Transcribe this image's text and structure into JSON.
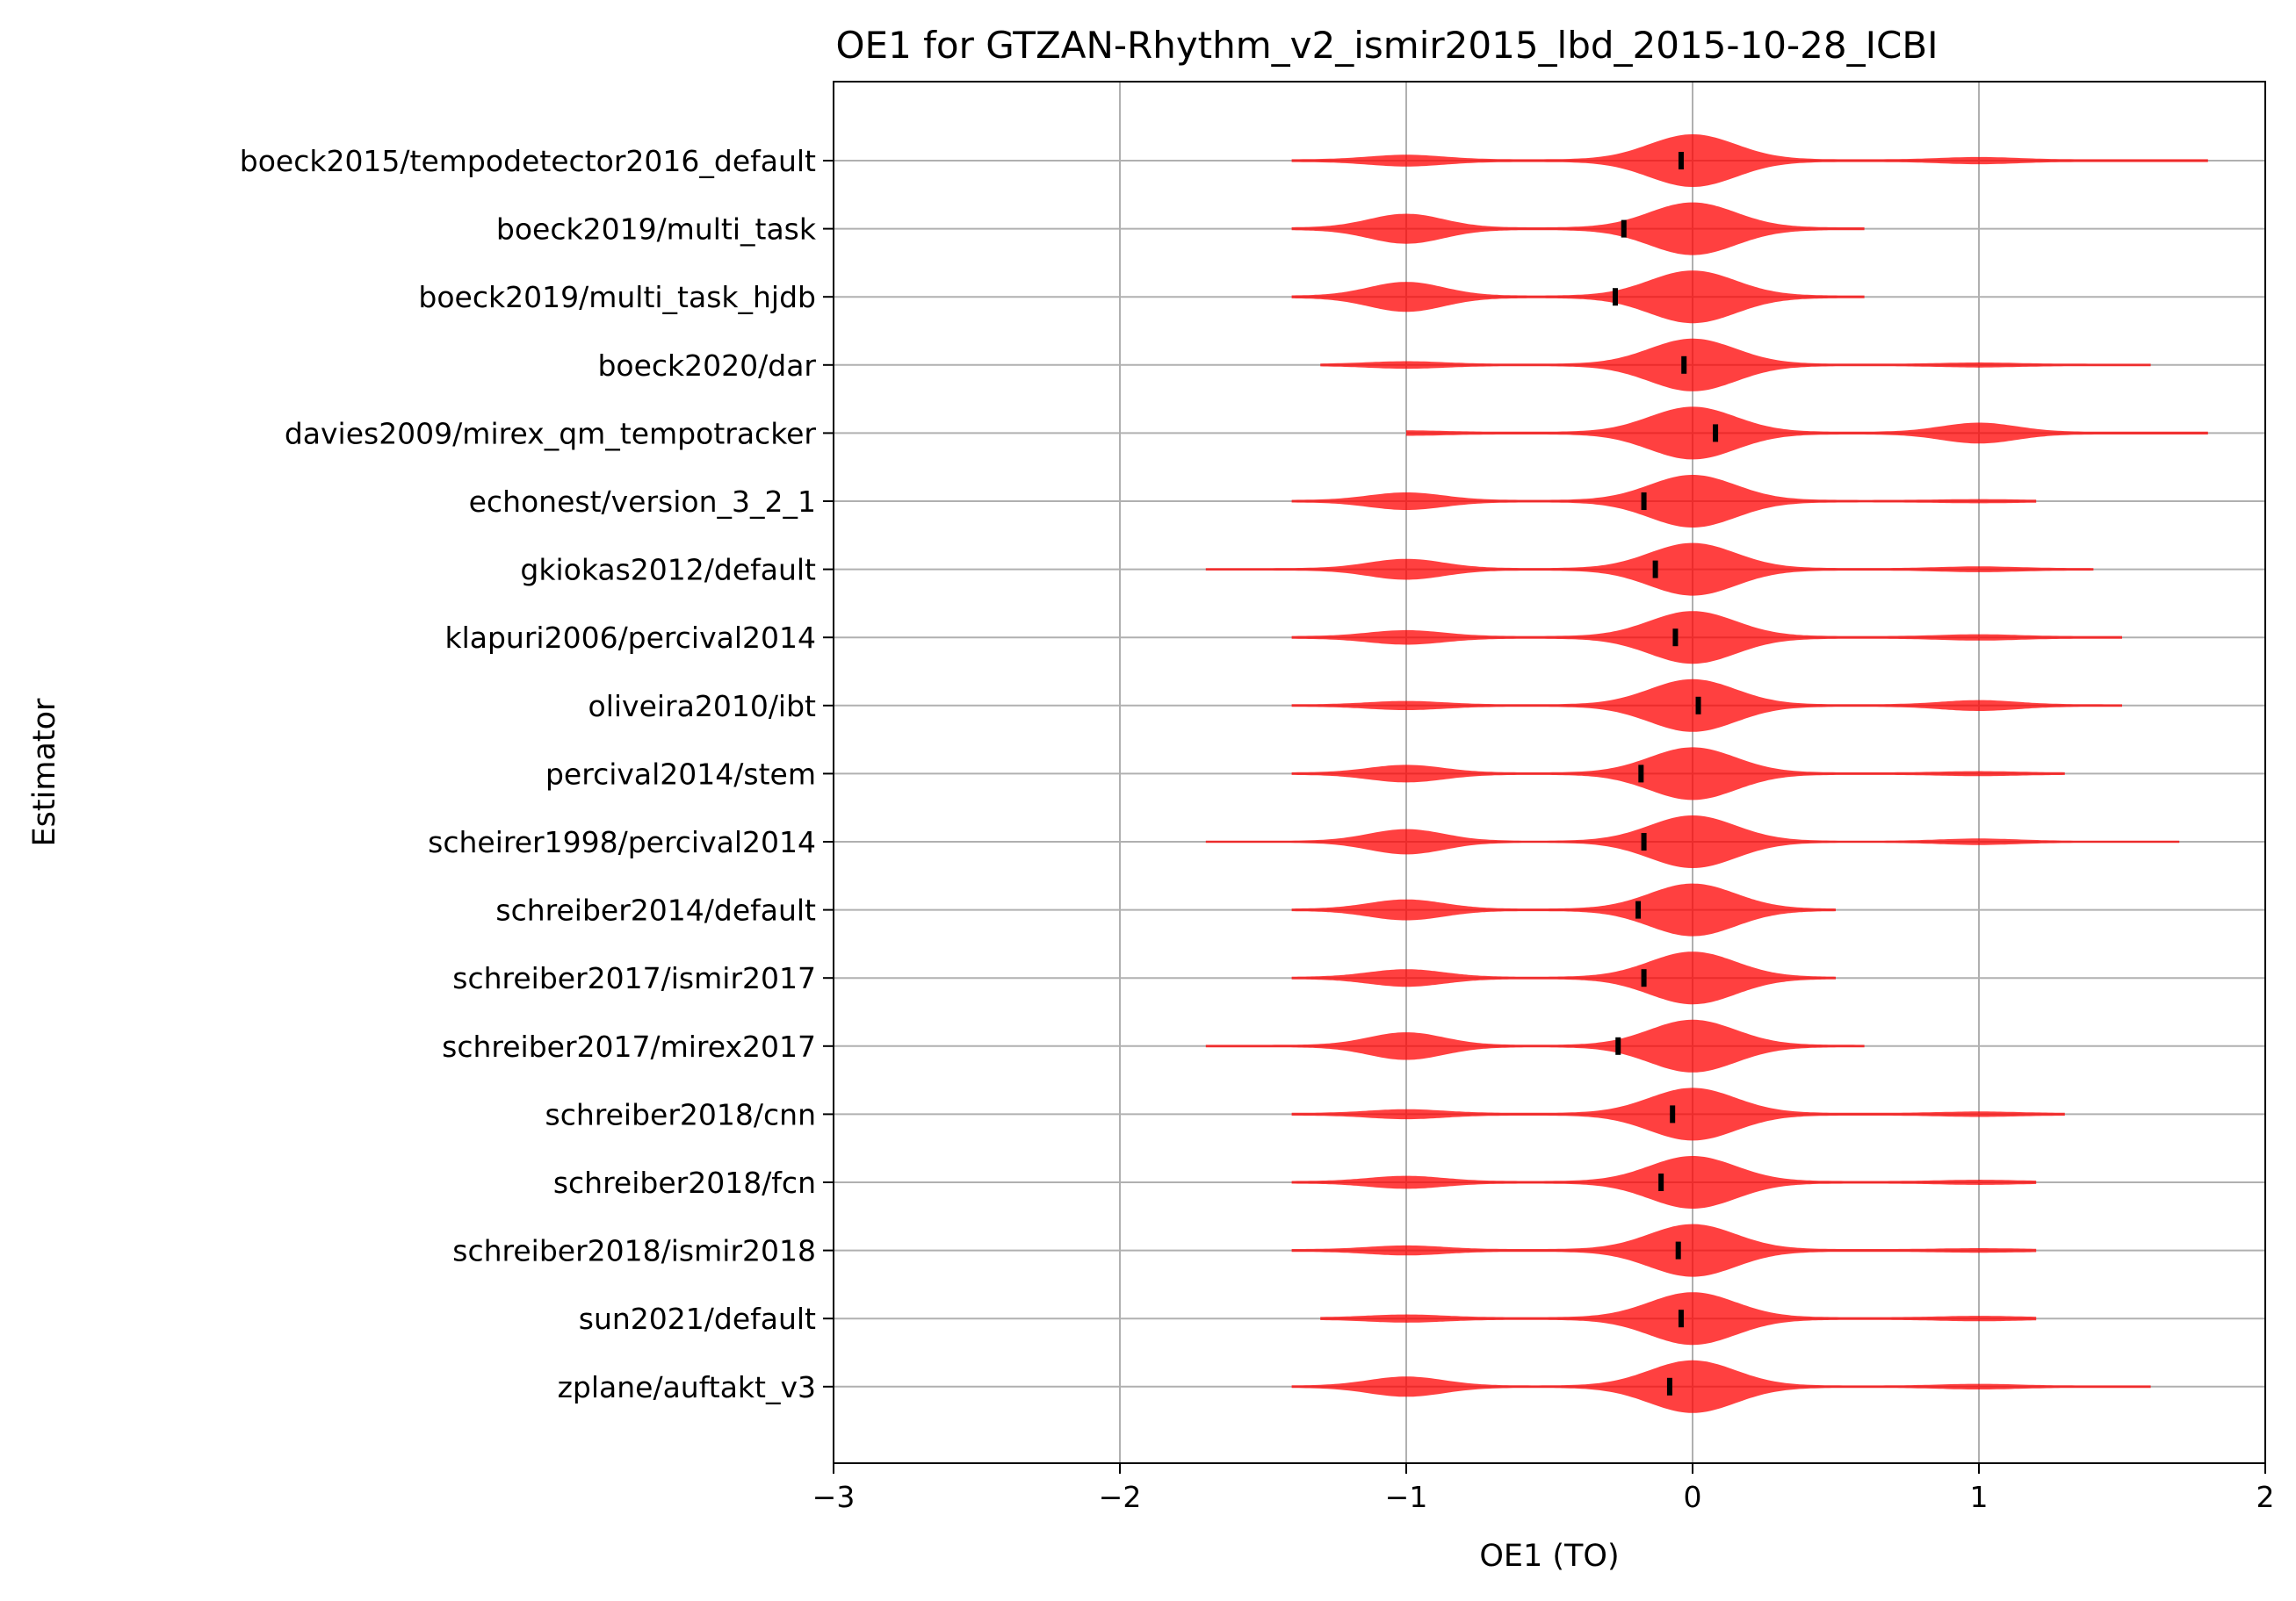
{
  "chart_data": {
    "type": "violin",
    "title": "OE1 for GTZAN-Rhythm_v2_ismir2015_lbd_2015-10-28_ICBI",
    "xlabel": "OE1 (TO)",
    "ylabel": "Estimator",
    "xlim": [
      -3,
      2
    ],
    "xticks": [
      -3,
      -2,
      -1,
      0,
      1,
      2
    ],
    "xtick_labels": [
      "−3",
      "−2",
      "−1",
      "0",
      "1",
      "2"
    ],
    "grid": true,
    "violin_color": "#ff0000",
    "mean_marker_color": "#000000",
    "categories": [
      "boeck2015/tempodetector2016_default",
      "boeck2019/multi_task",
      "boeck2019/multi_task_hjdb",
      "boeck2020/dar",
      "davies2009/mirex_qm_tempotracker",
      "echonest/version_3_2_1",
      "gkiokas2012/default",
      "klapuri2006/percival2014",
      "oliveira2010/ibt",
      "percival2014/stem",
      "scheirer1998/percival2014",
      "schreiber2014/default",
      "schreiber2017/ismir2017",
      "schreiber2017/mirex2017",
      "schreiber2018/cnn",
      "schreiber2018/fcn",
      "schreiber2018/ismir2018",
      "sun2021/default",
      "zplane/auftakt_v3"
    ],
    "means": [
      -0.04,
      -0.24,
      -0.27,
      -0.03,
      0.08,
      -0.17,
      -0.13,
      -0.06,
      0.02,
      -0.18,
      -0.17,
      -0.19,
      -0.17,
      -0.26,
      -0.07,
      -0.11,
      -0.05,
      -0.04,
      -0.08
    ],
    "ranges": [
      [
        -1.4,
        1.8
      ],
      [
        -1.4,
        0.6
      ],
      [
        -1.4,
        0.6
      ],
      [
        -1.3,
        1.6
      ],
      [
        -1.0,
        1.8
      ],
      [
        -1.4,
        1.2
      ],
      [
        -1.7,
        1.4
      ],
      [
        -1.4,
        1.5
      ],
      [
        -1.4,
        1.5
      ],
      [
        -1.4,
        1.3
      ],
      [
        -1.7,
        1.7
      ],
      [
        -1.4,
        0.5
      ],
      [
        -1.4,
        0.5
      ],
      [
        -1.7,
        0.6
      ],
      [
        -1.4,
        1.3
      ],
      [
        -1.4,
        1.2
      ],
      [
        -1.4,
        1.2
      ],
      [
        -1.3,
        1.2
      ],
      [
        -1.4,
        1.6
      ]
    ],
    "peak_weights": [
      {
        "m1": 0.1,
        "p0": 0.55,
        "p1": 0.05
      },
      {
        "m1": 0.3,
        "p0": 0.55,
        "p1": 0.0
      },
      {
        "m1": 0.3,
        "p0": 0.55,
        "p1": 0.0
      },
      {
        "m1": 0.06,
        "p0": 0.6,
        "p1": 0.03
      },
      {
        "m1": 0.03,
        "p0": 0.55,
        "p1": 0.2
      },
      {
        "m1": 0.18,
        "p0": 0.6,
        "p1": 0.02
      },
      {
        "m1": 0.22,
        "p0": 0.6,
        "p1": 0.04
      },
      {
        "m1": 0.13,
        "p0": 0.55,
        "p1": 0.04
      },
      {
        "m1": 0.08,
        "p0": 0.6,
        "p1": 0.1
      },
      {
        "m1": 0.18,
        "p0": 0.6,
        "p1": 0.03
      },
      {
        "m1": 0.32,
        "p0": 0.7,
        "p1": 0.06
      },
      {
        "m1": 0.22,
        "p0": 0.6,
        "p1": 0.0
      },
      {
        "m1": 0.18,
        "p0": 0.6,
        "p1": 0.0
      },
      {
        "m1": 0.3,
        "p0": 0.6,
        "p1": 0.0
      },
      {
        "m1": 0.08,
        "p0": 0.55,
        "p1": 0.03
      },
      {
        "m1": 0.12,
        "p0": 0.58,
        "p1": 0.03
      },
      {
        "m1": 0.08,
        "p0": 0.55,
        "p1": 0.02
      },
      {
        "m1": 0.06,
        "p0": 0.55,
        "p1": 0.03
      },
      {
        "m1": 0.22,
        "p0": 0.62,
        "p1": 0.04
      }
    ]
  }
}
